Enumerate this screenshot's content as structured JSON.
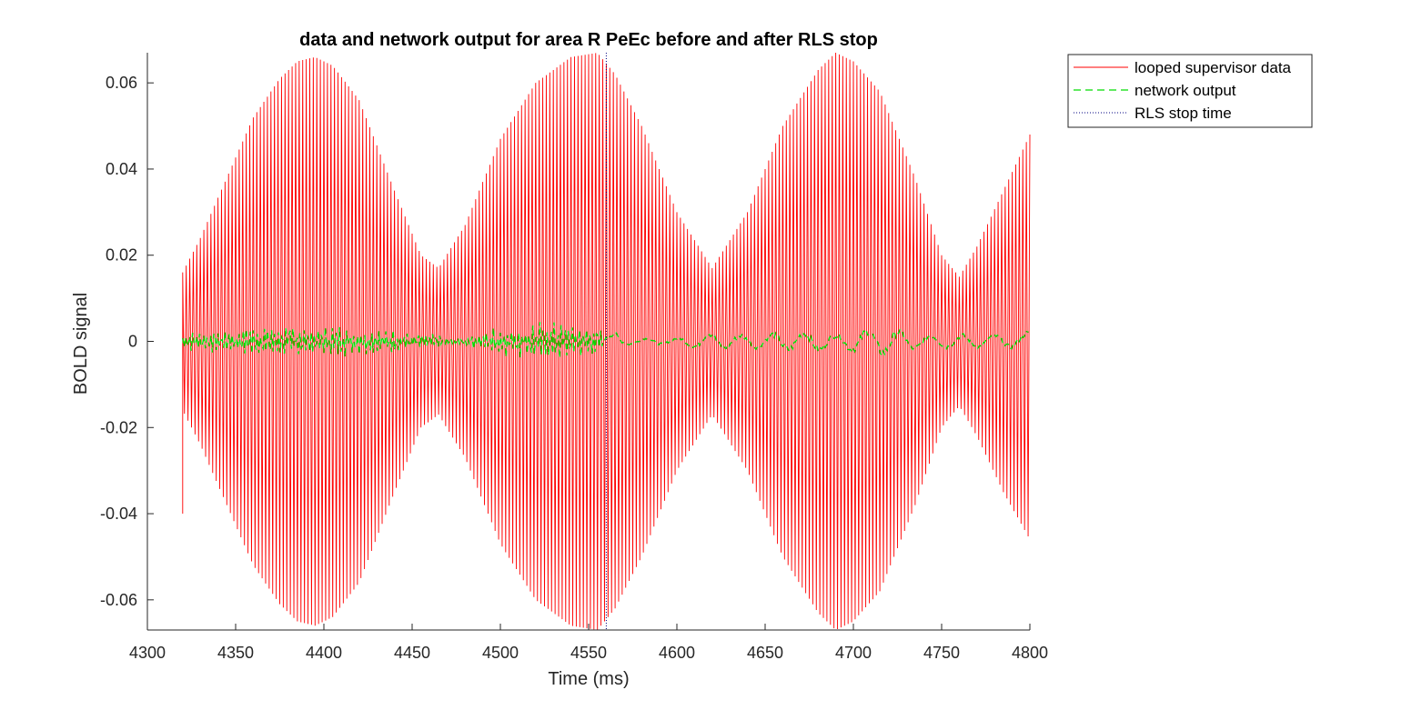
{
  "chart_data": {
    "type": "line",
    "title": "data and network output for area R PeEc before and after RLS stop",
    "xlabel": "Time (ms)",
    "ylabel": "BOLD signal",
    "xlim": [
      4300,
      4800
    ],
    "ylim": [
      -0.067,
      0.067
    ],
    "xticks": [
      4300,
      4350,
      4400,
      4450,
      4500,
      4550,
      4600,
      4650,
      4700,
      4750,
      4800
    ],
    "xtick_labels": [
      "4300",
      "4350",
      "4400",
      "4450",
      "4500",
      "4550",
      "4600",
      "4650",
      "4700",
      "4750",
      "4800"
    ],
    "yticks": [
      -0.06,
      -0.04,
      -0.02,
      0,
      0.02,
      0.04,
      0.06
    ],
    "ytick_labels": [
      "-0.06",
      "-0.04",
      "-0.02",
      "0",
      "0.02",
      "0.04",
      "0.06"
    ],
    "grid": false,
    "legend_position": "outside-top-right",
    "rls_stop_time": 4560,
    "series": [
      {
        "name": "looped supervisor data",
        "style": "solid",
        "color": "#ff0000",
        "x_start": 4320,
        "x_end": 4800,
        "oscillation_period_ms": 2,
        "first_value": -0.04,
        "envelope": {
          "x": [
            4320,
            4330,
            4345,
            4360,
            4375,
            4385,
            4395,
            4405,
            4420,
            4440,
            4455,
            4465,
            4480,
            4500,
            4520,
            4540,
            4555,
            4565,
            4580,
            4600,
            4620,
            4640,
            4660,
            4680,
            4690,
            4700,
            4715,
            4735,
            4750,
            4760,
            4770,
            4785,
            4800
          ],
          "upper": [
            0.016,
            0.024,
            0.038,
            0.052,
            0.061,
            0.065,
            0.066,
            0.064,
            0.056,
            0.035,
            0.02,
            0.017,
            0.027,
            0.047,
            0.06,
            0.066,
            0.067,
            0.062,
            0.05,
            0.03,
            0.017,
            0.03,
            0.05,
            0.063,
            0.067,
            0.065,
            0.058,
            0.038,
            0.02,
            0.015,
            0.022,
            0.035,
            0.048
          ],
          "lower": [
            -0.016,
            -0.024,
            -0.038,
            -0.052,
            -0.061,
            -0.065,
            -0.066,
            -0.064,
            -0.056,
            -0.035,
            -0.02,
            -0.017,
            -0.027,
            -0.047,
            -0.06,
            -0.066,
            -0.067,
            -0.062,
            -0.05,
            -0.03,
            -0.017,
            -0.03,
            -0.05,
            -0.063,
            -0.067,
            -0.065,
            -0.058,
            -0.038,
            -0.02,
            -0.015,
            -0.022,
            -0.035,
            -0.046
          ]
        }
      },
      {
        "name": "network output",
        "style": "dashed",
        "color": "#00dd00",
        "x": [
          4320,
          4330,
          4340,
          4350,
          4360,
          4370,
          4380,
          4390,
          4400,
          4410,
          4420,
          4430,
          4440,
          4450,
          4460,
          4470,
          4480,
          4490,
          4500,
          4510,
          4520,
          4530,
          4540,
          4550,
          4560,
          4570,
          4580,
          4590,
          4600,
          4610,
          4620,
          4630,
          4640,
          4650,
          4660,
          4670,
          4680,
          4690,
          4700,
          4710,
          4720,
          4730,
          4740,
          4750,
          4760,
          4770,
          4780,
          4790,
          4800
        ],
        "amplitude": [
          0.002,
          0.003,
          0.003,
          0.003,
          0.004,
          0.004,
          0.004,
          0.004,
          0.004,
          0.004,
          0.004,
          0.003,
          0.003,
          0.002,
          0.002,
          0.001,
          0.001,
          0.003,
          0.004,
          0.004,
          0.005,
          0.005,
          0.004,
          0.004,
          0.004,
          0.001,
          0.001,
          0.001,
          0.001,
          0.002,
          0.003,
          0.002,
          0.002,
          0.002,
          0.003,
          0.003,
          0.003,
          0.002,
          0.003,
          0.004,
          0.004,
          0.003,
          0.002,
          0.002,
          0.002,
          0.002,
          0.002,
          0.002,
          0.003
        ]
      },
      {
        "name": "RLS stop time",
        "style": "dotted",
        "color": "#000080",
        "x": [
          4560,
          4560
        ]
      }
    ]
  }
}
